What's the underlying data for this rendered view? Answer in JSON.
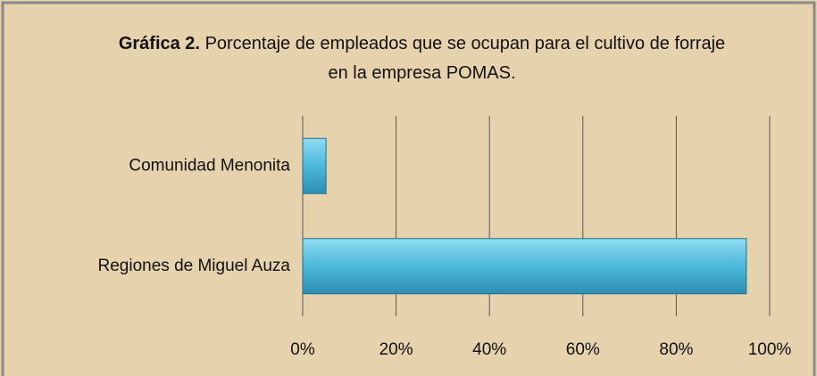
{
  "chart_data": {
    "type": "bar",
    "orientation": "horizontal",
    "title_label": "Gráfica 2.",
    "title": "Porcentaje de empleados que se ocupan para el cultivo de forraje en la empresa POMAS.",
    "categories": [
      "Comunidad Menonita",
      "Regiones de Miguel Auza"
    ],
    "values": [
      5,
      95
    ],
    "color": "#4bb8da",
    "xlim": [
      0,
      100
    ],
    "xticks": [
      {
        "value": 0,
        "label": "0%"
      },
      {
        "value": 20,
        "label": "20%"
      },
      {
        "value": 40,
        "label": "40%"
      },
      {
        "value": 60,
        "label": "60%"
      },
      {
        "value": 80,
        "label": "80%"
      },
      {
        "value": 100,
        "label": "100%"
      }
    ],
    "grid": true
  }
}
